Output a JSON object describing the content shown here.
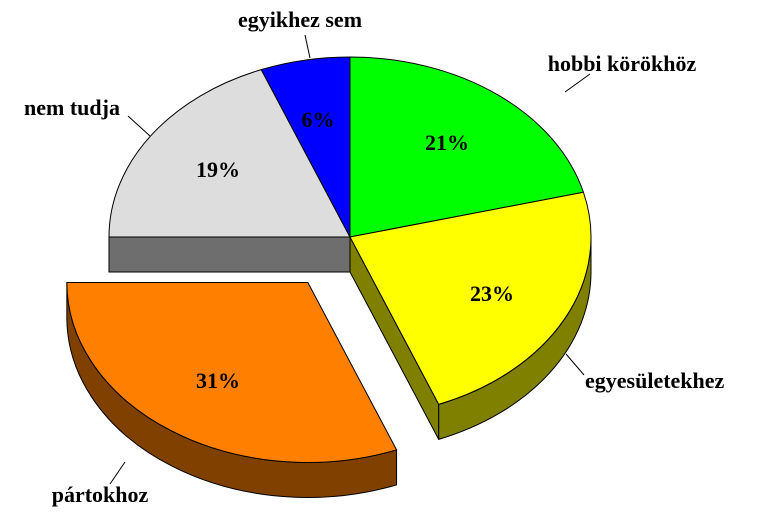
{
  "chart_data": {
    "type": "pie3d",
    "categories": [
      "hobbi körökhöz",
      "egyesületekhez",
      "pártokhoz",
      "nem tudja",
      "egyikhez sem"
    ],
    "values": [
      21,
      23,
      31,
      19,
      6
    ],
    "value_labels": [
      "21%",
      "23%",
      "31%",
      "19%",
      "6%"
    ],
    "colors": [
      "#00ff00",
      "#ffff00",
      "#ff8000",
      "#dddddd",
      "#0000ff"
    ]
  }
}
